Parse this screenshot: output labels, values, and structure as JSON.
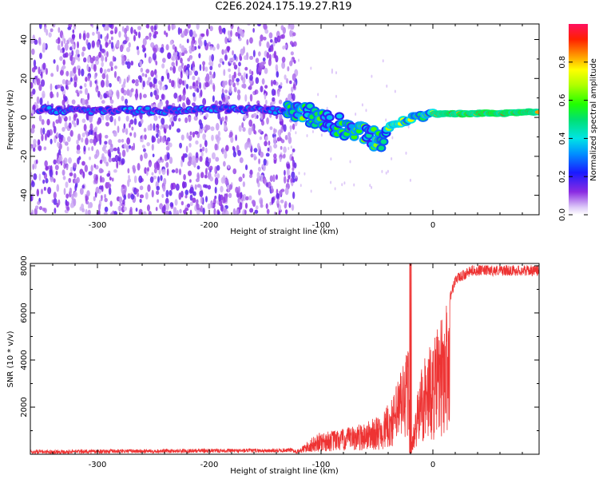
{
  "title": "C2E6.2024.175.19.27.R19",
  "chart_data": [
    {
      "type": "heatmap",
      "xlabel": "Height of straight line (km)",
      "ylabel": "Frequency (Hz)",
      "xlim": [
        -360,
        95
      ],
      "ylim": [
        -50,
        48
      ],
      "x_ticks": [
        -300,
        -200,
        -100,
        0
      ],
      "y_ticks": [
        -40,
        -20,
        0,
        20,
        40
      ],
      "colorbar": {
        "label": "Normalized spectral amplitude",
        "range": [
          0,
          1
        ],
        "ticks": [
          0.0,
          0.2,
          0.4,
          0.6,
          0.8
        ]
      },
      "noise_region_x": [
        -360,
        -130
      ],
      "ridge": [
        {
          "x": -350,
          "y": 4
        },
        {
          "x": -300,
          "y": 3.5
        },
        {
          "x": -250,
          "y": 3.5
        },
        {
          "x": -200,
          "y": 4
        },
        {
          "x": -150,
          "y": 4
        },
        {
          "x": -130,
          "y": 3
        },
        {
          "x": -110,
          "y": 1
        },
        {
          "x": -90,
          "y": -3
        },
        {
          "x": -70,
          "y": -7
        },
        {
          "x": -55,
          "y": -10
        },
        {
          "x": -45,
          "y": -12
        },
        {
          "x": -40,
          "y": -5
        },
        {
          "x": -30,
          "y": -2
        },
        {
          "x": -15,
          "y": 0
        },
        {
          "x": 0,
          "y": 1.5
        },
        {
          "x": 30,
          "y": 2
        },
        {
          "x": 60,
          "y": 2
        },
        {
          "x": 95,
          "y": 3
        }
      ]
    },
    {
      "type": "line",
      "xlabel": "Height of straight line (km)",
      "ylabel": "SNR (10 * v/v)",
      "xlim": [
        -360,
        95
      ],
      "ylim": [
        0,
        8100
      ],
      "x_ticks": [
        -300,
        -200,
        -100,
        0
      ],
      "y_ticks": [
        2000,
        4000,
        6000,
        8000
      ],
      "series_color": "#ee3333",
      "envelope": [
        {
          "x": -360,
          "y": 100
        },
        {
          "x": -200,
          "y": 150
        },
        {
          "x": -140,
          "y": 150
        },
        {
          "x": -120,
          "y": 200
        },
        {
          "x": -110,
          "y": 600
        },
        {
          "x": -100,
          "y": 900
        },
        {
          "x": -80,
          "y": 1000
        },
        {
          "x": -60,
          "y": 1300
        },
        {
          "x": -45,
          "y": 1600
        },
        {
          "x": -35,
          "y": 2400
        },
        {
          "x": -28,
          "y": 3600
        },
        {
          "x": -22,
          "y": 4500
        },
        {
          "x": -20,
          "y": 100
        },
        {
          "x": -10,
          "y": 3800
        },
        {
          "x": 0,
          "y": 4500
        },
        {
          "x": 10,
          "y": 5800
        },
        {
          "x": 20,
          "y": 7400
        },
        {
          "x": 35,
          "y": 7800
        },
        {
          "x": 60,
          "y": 7800
        },
        {
          "x": 95,
          "y": 7800
        }
      ]
    }
  ]
}
